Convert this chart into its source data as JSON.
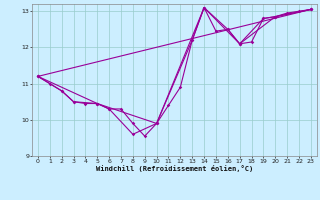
{
  "xlabel": "Windchill (Refroidissement éolien,°C)",
  "bg_color": "#cceeff",
  "line_color": "#990099",
  "grid_color": "#99cccc",
  "xlim": [
    -0.5,
    23.5
  ],
  "ylim": [
    9,
    13.2
  ],
  "yticks": [
    9,
    10,
    11,
    12,
    13
  ],
  "xticks": [
    0,
    1,
    2,
    3,
    4,
    5,
    6,
    7,
    8,
    9,
    10,
    11,
    12,
    13,
    14,
    15,
    16,
    17,
    18,
    19,
    20,
    21,
    22,
    23
  ],
  "series1_x": [
    0,
    1,
    2,
    3,
    4,
    5,
    6,
    7,
    8,
    9,
    10,
    11,
    12,
    13,
    14,
    15,
    16,
    17,
    18,
    19,
    20,
    21,
    22,
    23
  ],
  "series1_y": [
    11.2,
    11.0,
    10.8,
    10.5,
    10.45,
    10.45,
    10.3,
    10.3,
    9.9,
    9.55,
    9.9,
    10.4,
    10.9,
    12.2,
    13.1,
    12.45,
    12.5,
    12.1,
    12.15,
    12.8,
    12.85,
    12.95,
    13.0,
    13.05
  ],
  "series2_x": [
    0,
    2,
    3,
    5,
    6,
    8,
    10,
    13,
    14,
    16,
    17,
    19,
    20,
    23
  ],
  "series2_y": [
    11.2,
    10.8,
    10.5,
    10.45,
    10.3,
    9.6,
    9.9,
    12.2,
    13.1,
    12.5,
    12.1,
    12.8,
    12.85,
    13.05
  ],
  "series3_x": [
    0,
    5,
    10,
    14,
    17,
    20,
    23
  ],
  "series3_y": [
    11.2,
    10.45,
    9.9,
    13.1,
    12.1,
    12.85,
    13.05
  ],
  "series4_x": [
    0,
    23
  ],
  "series4_y": [
    11.2,
    13.05
  ]
}
